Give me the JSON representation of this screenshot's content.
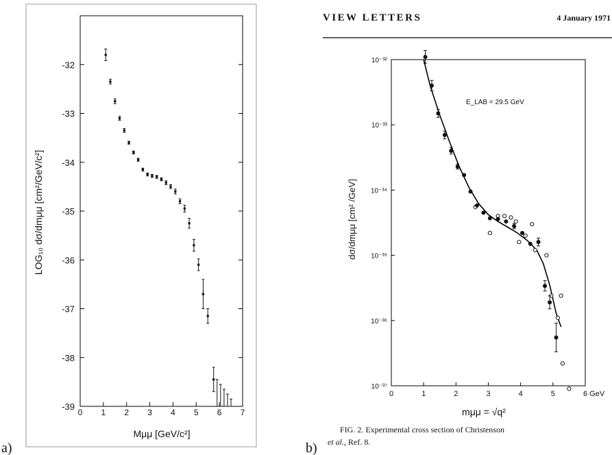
{
  "labels": {
    "a": "a)",
    "b": "b)"
  },
  "header": {
    "left": "VIEW LETTERS",
    "right": "4 January 1971"
  },
  "caption": {
    "line1": "FIG. 2. Experimental cross section of Christenson",
    "line2_italic": "et al.,",
    "line2_rest": " Ref. 8."
  },
  "chart_data": [
    {
      "type": "scatter",
      "panel": "a",
      "xlabel": "Mμμ  [GeV/c²]",
      "ylabel": "LOG₁₀  dσ/dmμμ  [cm²/GeV/c²]",
      "xlim": [
        0,
        7
      ],
      "ylim": [
        -39,
        -31
      ],
      "xticks": [
        "0",
        "1",
        "2",
        "3",
        "4",
        "5",
        "6",
        "7"
      ],
      "yticks": [
        "-32",
        "-33",
        "-34",
        "-35",
        "-36",
        "-37",
        "-38",
        "-39"
      ],
      "grid": false,
      "series": [
        {
          "points": [
            {
              "x": 1.1,
              "y": -31.8,
              "err": 0.12
            },
            {
              "x": 1.3,
              "y": -32.35,
              "err": 0.05
            },
            {
              "x": 1.5,
              "y": -32.75,
              "err": 0.05
            },
            {
              "x": 1.7,
              "y": -33.1,
              "err": 0.04
            },
            {
              "x": 1.9,
              "y": -33.35,
              "err": 0.04
            },
            {
              "x": 2.1,
              "y": -33.6,
              "err": 0.03
            },
            {
              "x": 2.3,
              "y": -33.8,
              "err": 0.03
            },
            {
              "x": 2.5,
              "y": -33.95,
              "err": 0.03
            },
            {
              "x": 2.7,
              "y": -34.15,
              "err": 0.03
            },
            {
              "x": 2.9,
              "y": -34.25,
              "err": 0.03
            },
            {
              "x": 3.1,
              "y": -34.28,
              "err": 0.03
            },
            {
              "x": 3.3,
              "y": -34.3,
              "err": 0.03
            },
            {
              "x": 3.5,
              "y": -34.35,
              "err": 0.03
            },
            {
              "x": 3.7,
              "y": -34.42,
              "err": 0.04
            },
            {
              "x": 3.9,
              "y": -34.5,
              "err": 0.04
            },
            {
              "x": 4.1,
              "y": -34.6,
              "err": 0.05
            },
            {
              "x": 4.3,
              "y": -34.8,
              "err": 0.05
            },
            {
              "x": 4.5,
              "y": -34.95,
              "err": 0.07
            },
            {
              "x": 4.7,
              "y": -35.25,
              "err": 0.1
            },
            {
              "x": 4.9,
              "y": -35.7,
              "err": 0.12
            },
            {
              "x": 5.1,
              "y": -36.1,
              "err": 0.12
            },
            {
              "x": 5.3,
              "y": -36.7,
              "err": 0.3
            },
            {
              "x": 5.5,
              "y": -37.15,
              "err": 0.15
            },
            {
              "x": 5.75,
              "y": -38.45,
              "err": 0.25
            }
          ]
        }
      ],
      "upper_limits_x": [
        5.9,
        6.05,
        6.2,
        6.35,
        6.5
      ]
    },
    {
      "type": "scatter",
      "panel": "b",
      "xlabel": "mμμ = √q²",
      "ylabel": "dσ/dmμμ  [cm² /GeV]",
      "yscale": "log",
      "xlim": [
        0,
        6
      ],
      "ylim": [
        1e-37,
        1e-32
      ],
      "xticks": [
        "0",
        "1",
        "2",
        "3",
        "4",
        "5",
        "6 GeV"
      ],
      "yticks": [
        "10⁻³²",
        "10⁻³³",
        "10⁻³⁴",
        "10⁻³⁵",
        "10⁻³⁶",
        "10⁻³⁷"
      ],
      "annotations": [
        "E_LAB = 29.5 GeV"
      ],
      "grid": false,
      "series": [
        {
          "marker": "filled",
          "points": [
            {
              "x": 1.05,
              "y": 1.1e-32,
              "errlog": 0.1
            },
            {
              "x": 1.25,
              "y": 4e-33,
              "errlog": 0.08
            },
            {
              "x": 1.45,
              "y": 1.5e-33,
              "errlog": 0.06
            },
            {
              "x": 1.65,
              "y": 7e-34,
              "errlog": 0.06
            },
            {
              "x": 1.85,
              "y": 4e-34,
              "errlog": 0.05
            },
            {
              "x": 2.05,
              "y": 2.3e-34,
              "errlog": 0.04
            },
            {
              "x": 2.25,
              "y": 1.7e-34,
              "errlog": 0
            },
            {
              "x": 2.45,
              "y": 9.5e-35,
              "errlog": 0
            },
            {
              "x": 2.65,
              "y": 5.8e-35,
              "errlog": 0
            },
            {
              "x": 2.85,
              "y": 4.5e-35,
              "errlog": 0
            },
            {
              "x": 3.05,
              "y": 3.7e-35,
              "errlog": 0
            },
            {
              "x": 3.3,
              "y": 3.6e-35,
              "errlog": 0
            },
            {
              "x": 3.55,
              "y": 3.3e-35,
              "errlog": 0
            },
            {
              "x": 3.8,
              "y": 2.8e-35,
              "errlog": 0.04
            },
            {
              "x": 4.05,
              "y": 2.2e-35,
              "errlog": 0
            },
            {
              "x": 4.3,
              "y": 1.5e-35,
              "errlog": 0
            },
            {
              "x": 4.55,
              "y": 1.6e-35,
              "errlog": 0.06
            },
            {
              "x": 4.75,
              "y": 3.4e-36,
              "errlog": 0.08
            },
            {
              "x": 4.9,
              "y": 1.9e-36,
              "errlog": 0.1
            },
            {
              "x": 5.1,
              "y": 5.5e-37,
              "errlog": 0.22
            }
          ]
        },
        {
          "marker": "open",
          "points": [
            {
              "x": 2.6,
              "y": 5.5e-35
            },
            {
              "x": 3.05,
              "y": 2.2e-35
            },
            {
              "x": 3.3,
              "y": 4e-35
            },
            {
              "x": 3.5,
              "y": 4e-35
            },
            {
              "x": 3.7,
              "y": 3.8e-35
            },
            {
              "x": 3.85,
              "y": 3.3e-35
            },
            {
              "x": 3.95,
              "y": 1.6e-35
            },
            {
              "x": 4.15,
              "y": 2e-35
            },
            {
              "x": 4.35,
              "y": 3e-35
            },
            {
              "x": 4.45,
              "y": 1.2e-35
            },
            {
              "x": 4.8,
              "y": 1e-35
            },
            {
              "x": 4.95,
              "y": 2.4e-36
            },
            {
              "x": 5.15,
              "y": 1.1e-36
            },
            {
              "x": 5.25,
              "y": 2.4e-36
            },
            {
              "x": 5.3,
              "y": 2.2e-37
            },
            {
              "x": 5.5,
              "y": 9e-38
            }
          ]
        },
        {
          "marker": "line",
          "points": [
            {
              "x": 1.0,
              "y": 1e-32
            },
            {
              "x": 1.2,
              "y": 4e-33
            },
            {
              "x": 1.5,
              "y": 1.4e-33
            },
            {
              "x": 1.8,
              "y": 5.5e-34
            },
            {
              "x": 2.1,
              "y": 2.3e-34
            },
            {
              "x": 2.4,
              "y": 1.1e-34
            },
            {
              "x": 2.7,
              "y": 6.2e-35
            },
            {
              "x": 3.0,
              "y": 4.2e-35
            },
            {
              "x": 3.3,
              "y": 3.3e-35
            },
            {
              "x": 3.6,
              "y": 2.7e-35
            },
            {
              "x": 3.9,
              "y": 2.2e-35
            },
            {
              "x": 4.2,
              "y": 1.7e-35
            },
            {
              "x": 4.5,
              "y": 1.2e-35
            },
            {
              "x": 4.7,
              "y": 7.5e-36
            },
            {
              "x": 4.9,
              "y": 3.5e-36
            },
            {
              "x": 5.1,
              "y": 1.3e-36
            },
            {
              "x": 5.25,
              "y": 8e-37
            }
          ]
        }
      ]
    }
  ]
}
